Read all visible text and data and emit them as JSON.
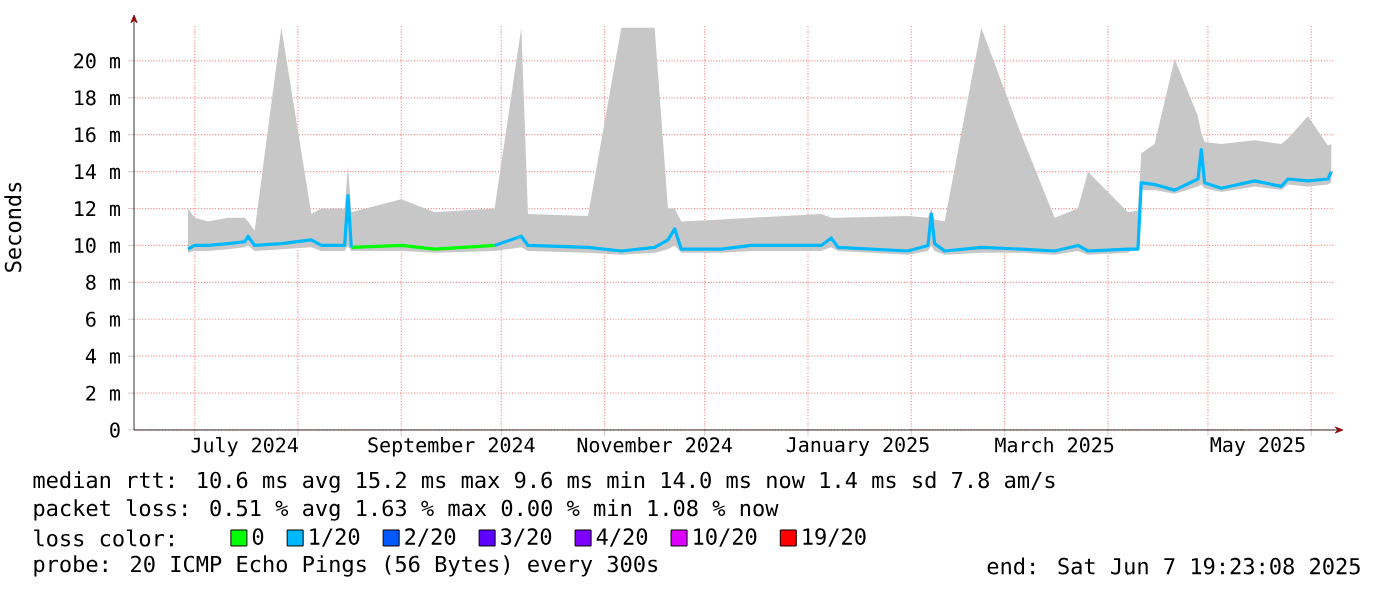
{
  "chart_data": {
    "type": "line",
    "ylabel": "Seconds",
    "legend_title": "loss color:",
    "x": [
      "2024-06-29",
      "2024-07-01",
      "2024-07-05",
      "2024-07-11",
      "2024-07-16",
      "2024-07-17",
      "2024-07-19",
      "2024-07-27",
      "2024-08-05",
      "2024-08-08",
      "2024-08-15",
      "2024-08-16",
      "2024-08-17",
      "2024-09-01",
      "2024-09-11",
      "2024-09-29",
      "2024-10-07",
      "2024-10-09",
      "2024-10-27",
      "2024-11-06",
      "2024-11-16",
      "2024-11-20",
      "2024-11-22",
      "2024-11-24",
      "2024-12-06",
      "2024-12-15",
      "2025-01-05",
      "2025-01-08",
      "2025-01-10",
      "2025-01-31",
      "2025-02-06",
      "2025-02-07",
      "2025-02-08",
      "2025-02-11",
      "2025-02-22",
      "2025-03-06",
      "2025-03-16",
      "2025-03-23",
      "2025-03-26",
      "2025-04-07",
      "2025-04-10",
      "2025-04-11",
      "2025-04-15",
      "2025-04-21",
      "2025-04-28",
      "2025-04-29",
      "2025-04-30",
      "2025-05-05",
      "2025-05-15",
      "2025-05-23",
      "2025-05-25",
      "2025-05-31",
      "2025-06-06",
      "2025-06-07"
    ],
    "series": [
      {
        "name": "0",
        "color": "#00ff00",
        "values": [
          null,
          null,
          null,
          null,
          null,
          null,
          null,
          null,
          null,
          null,
          null,
          null,
          9.9,
          10.0,
          9.8,
          10.0,
          null,
          null,
          null,
          null,
          null,
          null,
          null,
          null,
          null,
          null,
          null,
          null,
          null,
          null,
          null,
          null,
          null,
          null,
          null,
          null,
          null,
          null,
          null,
          null,
          null,
          null,
          null,
          null,
          null,
          null,
          null,
          null,
          null,
          null,
          null,
          null,
          null,
          null
        ]
      },
      {
        "name": "1/20",
        "color": "#00b8ff",
        "values": [
          9.8,
          10.0,
          10.0,
          10.1,
          10.2,
          10.5,
          10.0,
          10.1,
          10.3,
          10.0,
          10.0,
          12.7,
          9.9,
          null,
          null,
          10.0,
          10.5,
          10.0,
          9.9,
          9.7,
          9.9,
          10.3,
          10.9,
          9.8,
          9.8,
          10.0,
          10.0,
          10.4,
          9.9,
          9.7,
          10.0,
          11.7,
          10.1,
          9.7,
          9.9,
          9.8,
          9.7,
          10.0,
          9.7,
          9.8,
          9.8,
          13.4,
          13.3,
          13.0,
          13.6,
          15.2,
          13.4,
          13.1,
          13.5,
          13.2,
          13.6,
          13.5,
          13.6,
          14.0
        ],
        "lower": [
          9.6,
          9.7,
          9.7,
          9.8,
          9.9,
          10.0,
          9.7,
          9.8,
          9.9,
          9.7,
          9.7,
          10.0,
          9.7,
          9.7,
          9.6,
          9.7,
          9.9,
          9.7,
          9.6,
          9.5,
          9.6,
          9.8,
          10.0,
          9.6,
          9.6,
          9.7,
          9.7,
          9.9,
          9.7,
          9.5,
          9.7,
          10.0,
          9.7,
          9.5,
          9.6,
          9.6,
          9.5,
          9.7,
          9.5,
          9.6,
          9.9,
          13.0,
          13.0,
          12.8,
          13.2,
          13.3,
          13.1,
          12.9,
          13.2,
          13.0,
          13.3,
          13.2,
          13.3,
          13.4
        ],
        "upper": [
          12.0,
          11.5,
          11.3,
          11.5,
          11.5,
          11.3,
          10.8,
          21.8,
          11.7,
          12.0,
          12.0,
          14.3,
          11.8,
          12.5,
          11.8,
          12.0,
          21.8,
          11.7,
          11.6,
          21.8,
          21.8,
          12.0,
          12.0,
          11.3,
          11.4,
          11.5,
          11.7,
          11.5,
          11.5,
          11.6,
          11.5,
          12.0,
          11.4,
          11.3,
          21.8,
          16.0,
          11.5,
          12.0,
          14.0,
          11.8,
          11.9,
          15.0,
          15.5,
          20.1,
          17.0,
          16.1,
          15.6,
          15.5,
          15.7,
          15.5,
          15.8,
          17.0,
          15.4,
          15.5
        ]
      },
      {
        "name": "2/20",
        "color": "#0059ff",
        "values": [
          null,
          null,
          null,
          null,
          null,
          null,
          null,
          null,
          null,
          null,
          null,
          null,
          null,
          null,
          null,
          null,
          null,
          null,
          null,
          null,
          null,
          null,
          null,
          null,
          null,
          null,
          null,
          null,
          null,
          null,
          null,
          null,
          null,
          null,
          null,
          null,
          null,
          null,
          null,
          null,
          null,
          null,
          null,
          null,
          null,
          null,
          null,
          null,
          null,
          null,
          null,
          null,
          null,
          null
        ]
      },
      {
        "name": "3/20",
        "color": "#5e00ff",
        "values": [
          null,
          null,
          null,
          null,
          null,
          null,
          null,
          null,
          null,
          null,
          null,
          null,
          null,
          null,
          null,
          null,
          null,
          null,
          null,
          null,
          null,
          null,
          null,
          null,
          null,
          null,
          null,
          null,
          null,
          null,
          null,
          null,
          null,
          null,
          null,
          null,
          null,
          null,
          null,
          null,
          null,
          null,
          null,
          null,
          null,
          null,
          null,
          null,
          null,
          null,
          null,
          null,
          null,
          null
        ]
      },
      {
        "name": "4/20",
        "color": "#7e00ff",
        "values": [
          null,
          null,
          null,
          null,
          null,
          null,
          null,
          null,
          null,
          null,
          null,
          null,
          null,
          null,
          null,
          null,
          null,
          null,
          null,
          null,
          null,
          null,
          null,
          null,
          null,
          null,
          null,
          null,
          null,
          null,
          null,
          null,
          null,
          null,
          null,
          null,
          null,
          null,
          null,
          null,
          null,
          null,
          null,
          null,
          null,
          null,
          null,
          null,
          null,
          null,
          null,
          null,
          null,
          null
        ]
      },
      {
        "name": "10/20",
        "color": "#dd00ff",
        "values": [
          null,
          null,
          null,
          null,
          null,
          null,
          null,
          null,
          null,
          null,
          null,
          null,
          null,
          null,
          null,
          null,
          null,
          null,
          null,
          null,
          null,
          null,
          null,
          null,
          null,
          null,
          null,
          null,
          null,
          null,
          null,
          null,
          null,
          null,
          null,
          null,
          null,
          null,
          null,
          null,
          null,
          null,
          null,
          null,
          null,
          null,
          null,
          null,
          null,
          null,
          null,
          null,
          null,
          null
        ]
      },
      {
        "name": "19/20",
        "color": "#ff0000",
        "values": [
          null,
          null,
          null,
          null,
          null,
          null,
          null,
          null,
          null,
          null,
          null,
          null,
          null,
          null,
          null,
          null,
          null,
          null,
          null,
          null,
          null,
          null,
          null,
          null,
          null,
          null,
          null,
          null,
          null,
          null,
          null,
          null,
          null,
          null,
          null,
          null,
          null,
          null,
          null,
          null,
          null,
          null,
          null,
          null,
          null,
          null,
          null,
          null,
          null,
          null,
          null,
          null,
          null,
          null
        ]
      }
    ],
    "xlim": [
      "2024-06-12T19:23",
      "2025-06-07T19:23"
    ],
    "xticks": [
      {
        "value": "2024-07-01",
        "label": null
      },
      {
        "value": "2024-07-16",
        "label": "July 2024"
      },
      {
        "value": "2024-08-01",
        "label": null
      },
      {
        "value": "2024-09-01",
        "label": null
      },
      {
        "value": "2024-09-16",
        "label": "September 2024"
      },
      {
        "value": "2024-10-01",
        "label": null
      },
      {
        "value": "2024-11-01",
        "label": null
      },
      {
        "value": "2024-11-16",
        "label": "November 2024"
      },
      {
        "value": "2024-12-01",
        "label": null
      },
      {
        "value": "2025-01-01",
        "label": null
      },
      {
        "value": "2025-01-16",
        "label": "January 2025"
      },
      {
        "value": "2025-02-01",
        "label": null
      },
      {
        "value": "2025-03-01",
        "label": null
      },
      {
        "value": "2025-03-16",
        "label": "March 2025"
      },
      {
        "value": "2025-04-01",
        "label": null
      },
      {
        "value": "2025-05-01",
        "label": null
      },
      {
        "value": "2025-05-16",
        "label": "May 2025"
      },
      {
        "value": "2025-06-01",
        "label": null
      }
    ],
    "ylim": [
      0,
      22
    ],
    "yticks": [
      0,
      {
        "value": 2,
        "label": "2 m"
      },
      {
        "value": 4,
        "label": "4 m"
      },
      {
        "value": 6,
        "label": "6 m"
      },
      {
        "value": 8,
        "label": "8 m"
      },
      {
        "value": 10,
        "label": "10 m"
      },
      {
        "value": 12,
        "label": "12 m"
      },
      {
        "value": 14,
        "label": "14 m"
      },
      {
        "value": 16,
        "label": "16 m"
      },
      {
        "value": 18,
        "label": "18 m"
      },
      {
        "value": 20,
        "label": "20 m"
      }
    ],
    "grid": true,
    "legend": "bottom",
    "marker": "none",
    "line_style": "solid",
    "annotations": [
      "median rtt:  10.6 ms avg  15.2 ms max  9.6 ms min  14.0 ms now  1.4 ms sd  7.8   am/s",
      "packet loss: 0.51 % avg  1.63 % max  0.00 % min  1.08 % now",
      "probe:       20 ICMP Echo Pings (56 Bytes) every 300s",
      "end: Sat Jun  7 19:23:08 2025"
    ]
  }
}
